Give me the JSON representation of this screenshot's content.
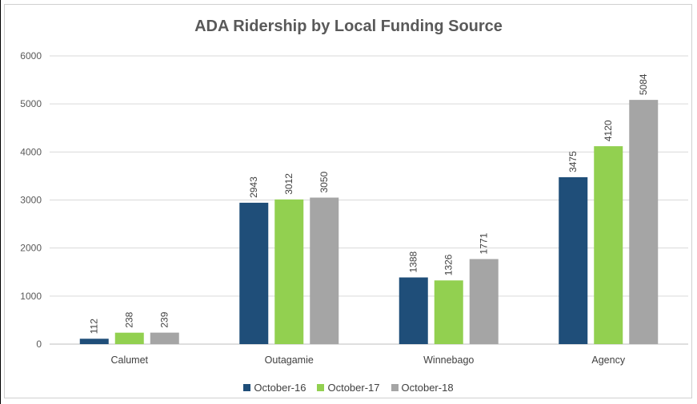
{
  "chart_data": {
    "type": "bar",
    "title": "ADA Ridership by Local Funding Source",
    "categories": [
      "Calumet",
      "Outagamie",
      "Winnebago",
      "Agency"
    ],
    "series": [
      {
        "name": "October-16",
        "color": "#1f4e79",
        "values": [
          112,
          2943,
          1388,
          3475
        ]
      },
      {
        "name": "October-17",
        "color": "#92d050",
        "values": [
          238,
          3012,
          1326,
          4120
        ]
      },
      {
        "name": "October-18",
        "color": "#a5a5a5",
        "values": [
          239,
          3050,
          1771,
          5084
        ]
      }
    ],
    "yticks": [
      0,
      1000,
      2000,
      3000,
      4000,
      5000,
      6000
    ],
    "ylim": [
      0,
      6000
    ],
    "grid": true,
    "legend": "bottom"
  }
}
